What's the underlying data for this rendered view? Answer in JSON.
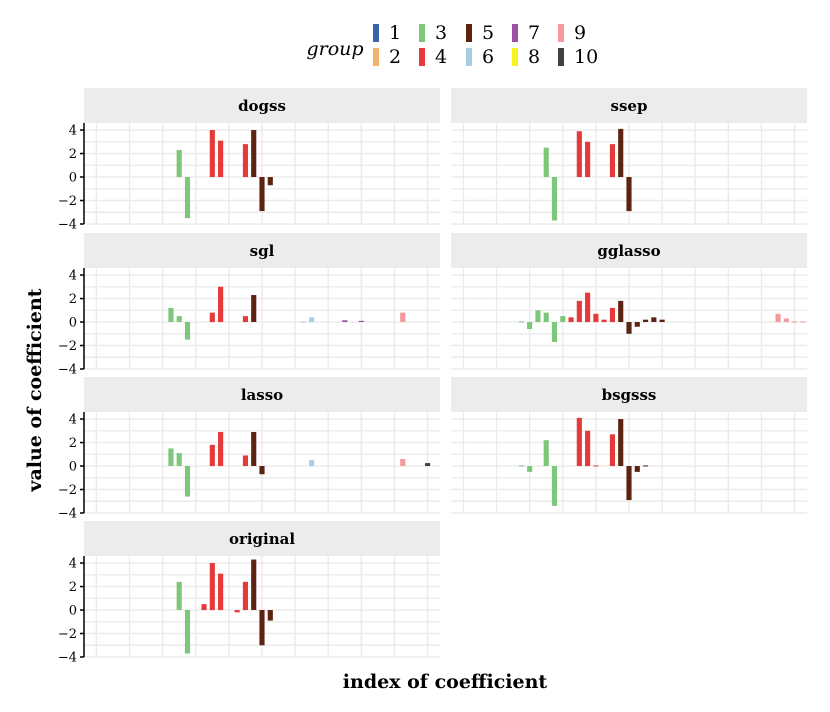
{
  "chart_data": {
    "type": "bar",
    "facets_layout": "2 columns x 4 rows, free x-axis text hidden",
    "xlabel": "index of coefficient",
    "ylabel": "value of coefficient",
    "ylim": [
      -4,
      4.6
    ],
    "yticks": [
      -4,
      -2,
      0,
      2,
      4
    ],
    "ytick_labels": [
      "−4",
      "−2",
      "0",
      "2",
      "4"
    ],
    "xlim": [
      0.5,
      43.5
    ],
    "legend": {
      "title": "group",
      "placement": "top",
      "items": [
        {
          "label": "1",
          "color": "#3a62a7"
        },
        {
          "label": "2",
          "color": "#f4b26a"
        },
        {
          "label": "3",
          "color": "#7ec77a"
        },
        {
          "label": "4",
          "color": "#e5393a"
        },
        {
          "label": "5",
          "color": "#5c2310"
        },
        {
          "label": "6",
          "color": "#a6cee3"
        },
        {
          "label": "7",
          "color": "#9a51a2"
        },
        {
          "label": "8",
          "color": "#f7f424"
        },
        {
          "label": "9",
          "color": "#f4999e"
        },
        {
          "label": "10",
          "color": "#404040"
        }
      ]
    },
    "facets": [
      {
        "title": "dogss",
        "bars": [
          {
            "x": 12,
            "y": 2.3,
            "group": 3
          },
          {
            "x": 13,
            "y": -3.5,
            "group": 3
          },
          {
            "x": 16,
            "y": 4.0,
            "group": 4
          },
          {
            "x": 17,
            "y": 3.1,
            "group": 4
          },
          {
            "x": 20,
            "y": 2.8,
            "group": 4
          },
          {
            "x": 21,
            "y": 4.0,
            "group": 5
          },
          {
            "x": 22,
            "y": -2.9,
            "group": 5
          },
          {
            "x": 23,
            "y": -0.7,
            "group": 5
          }
        ]
      },
      {
        "title": "ssep",
        "bars": [
          {
            "x": 12,
            "y": 2.5,
            "group": 3
          },
          {
            "x": 13,
            "y": -3.7,
            "group": 3
          },
          {
            "x": 16,
            "y": 3.9,
            "group": 4
          },
          {
            "x": 17,
            "y": 3.0,
            "group": 4
          },
          {
            "x": 20,
            "y": 2.8,
            "group": 4
          },
          {
            "x": 21,
            "y": 4.1,
            "group": 5
          },
          {
            "x": 22,
            "y": -2.9,
            "group": 5
          }
        ]
      },
      {
        "title": "sgl",
        "bars": [
          {
            "x": 11,
            "y": 1.2,
            "group": 3
          },
          {
            "x": 12,
            "y": 0.5,
            "group": 3
          },
          {
            "x": 13,
            "y": -1.5,
            "group": 3
          },
          {
            "x": 16,
            "y": 0.8,
            "group": 4
          },
          {
            "x": 17,
            "y": 3.0,
            "group": 4
          },
          {
            "x": 20,
            "y": 0.5,
            "group": 4
          },
          {
            "x": 21,
            "y": 2.3,
            "group": 5
          },
          {
            "x": 27,
            "y": 0.05,
            "group": 6
          },
          {
            "x": 28,
            "y": 0.4,
            "group": 6
          },
          {
            "x": 32,
            "y": 0.15,
            "group": 7
          },
          {
            "x": 34,
            "y": 0.1,
            "group": 7
          },
          {
            "x": 39,
            "y": 0.8,
            "group": 9
          }
        ]
      },
      {
        "title": "gglasso",
        "bars": [
          {
            "x": 9,
            "y": 0.05,
            "group": 3
          },
          {
            "x": 10,
            "y": -0.6,
            "group": 3
          },
          {
            "x": 11,
            "y": 1.0,
            "group": 3
          },
          {
            "x": 12,
            "y": 0.8,
            "group": 3
          },
          {
            "x": 13,
            "y": -1.7,
            "group": 3
          },
          {
            "x": 14,
            "y": 0.5,
            "group": 3
          },
          {
            "x": 15,
            "y": 0.4,
            "group": 4
          },
          {
            "x": 16,
            "y": 1.8,
            "group": 4
          },
          {
            "x": 17,
            "y": 2.5,
            "group": 4
          },
          {
            "x": 18,
            "y": 0.7,
            "group": 4
          },
          {
            "x": 19,
            "y": 0.2,
            "group": 4
          },
          {
            "x": 20,
            "y": 1.2,
            "group": 4
          },
          {
            "x": 21,
            "y": 1.8,
            "group": 5
          },
          {
            "x": 22,
            "y": -1.0,
            "group": 5
          },
          {
            "x": 23,
            "y": -0.4,
            "group": 5
          },
          {
            "x": 24,
            "y": 0.2,
            "group": 5
          },
          {
            "x": 25,
            "y": 0.4,
            "group": 5
          },
          {
            "x": 26,
            "y": 0.2,
            "group": 5
          },
          {
            "x": 40,
            "y": 0.7,
            "group": 9
          },
          {
            "x": 41,
            "y": 0.3,
            "group": 9
          },
          {
            "x": 42,
            "y": 0.05,
            "group": 9
          },
          {
            "x": 43,
            "y": 0.05,
            "group": 9
          }
        ]
      },
      {
        "title": "lasso",
        "bars": [
          {
            "x": 11,
            "y": 1.5,
            "group": 3
          },
          {
            "x": 12,
            "y": 1.1,
            "group": 3
          },
          {
            "x": 13,
            "y": -2.6,
            "group": 3
          },
          {
            "x": 16,
            "y": 1.8,
            "group": 4
          },
          {
            "x": 17,
            "y": 2.9,
            "group": 4
          },
          {
            "x": 20,
            "y": 0.9,
            "group": 4
          },
          {
            "x": 21,
            "y": 2.9,
            "group": 5
          },
          {
            "x": 22,
            "y": -0.7,
            "group": 5
          },
          {
            "x": 28,
            "y": 0.5,
            "group": 6
          },
          {
            "x": 39,
            "y": 0.6,
            "group": 9
          },
          {
            "x": 42,
            "y": 0.25,
            "group": 10
          }
        ]
      },
      {
        "title": "bsgsss",
        "bars": [
          {
            "x": 9,
            "y": 0.05,
            "group": 3
          },
          {
            "x": 10,
            "y": -0.5,
            "group": 3
          },
          {
            "x": 12,
            "y": 2.2,
            "group": 3
          },
          {
            "x": 13,
            "y": -3.4,
            "group": 3
          },
          {
            "x": 16,
            "y": 4.1,
            "group": 4
          },
          {
            "x": 17,
            "y": 3.0,
            "group": 4
          },
          {
            "x": 18,
            "y": 0.05,
            "group": 4
          },
          {
            "x": 20,
            "y": 2.7,
            "group": 4
          },
          {
            "x": 21,
            "y": 4.0,
            "group": 5
          },
          {
            "x": 22,
            "y": -2.9,
            "group": 5
          },
          {
            "x": 23,
            "y": -0.5,
            "group": 5
          },
          {
            "x": 24,
            "y": 0.05,
            "group": 5
          }
        ]
      },
      {
        "title": "original",
        "bars": [
          {
            "x": 12,
            "y": 2.4,
            "group": 3
          },
          {
            "x": 13,
            "y": -3.7,
            "group": 3
          },
          {
            "x": 15,
            "y": 0.5,
            "group": 4
          },
          {
            "x": 16,
            "y": 4.0,
            "group": 4
          },
          {
            "x": 17,
            "y": 3.1,
            "group": 4
          },
          {
            "x": 19,
            "y": -0.2,
            "group": 4
          },
          {
            "x": 20,
            "y": 2.4,
            "group": 4
          },
          {
            "x": 21,
            "y": 4.3,
            "group": 5
          },
          {
            "x": 22,
            "y": -3.0,
            "group": 5
          },
          {
            "x": 23,
            "y": -0.9,
            "group": 5
          }
        ]
      }
    ]
  }
}
